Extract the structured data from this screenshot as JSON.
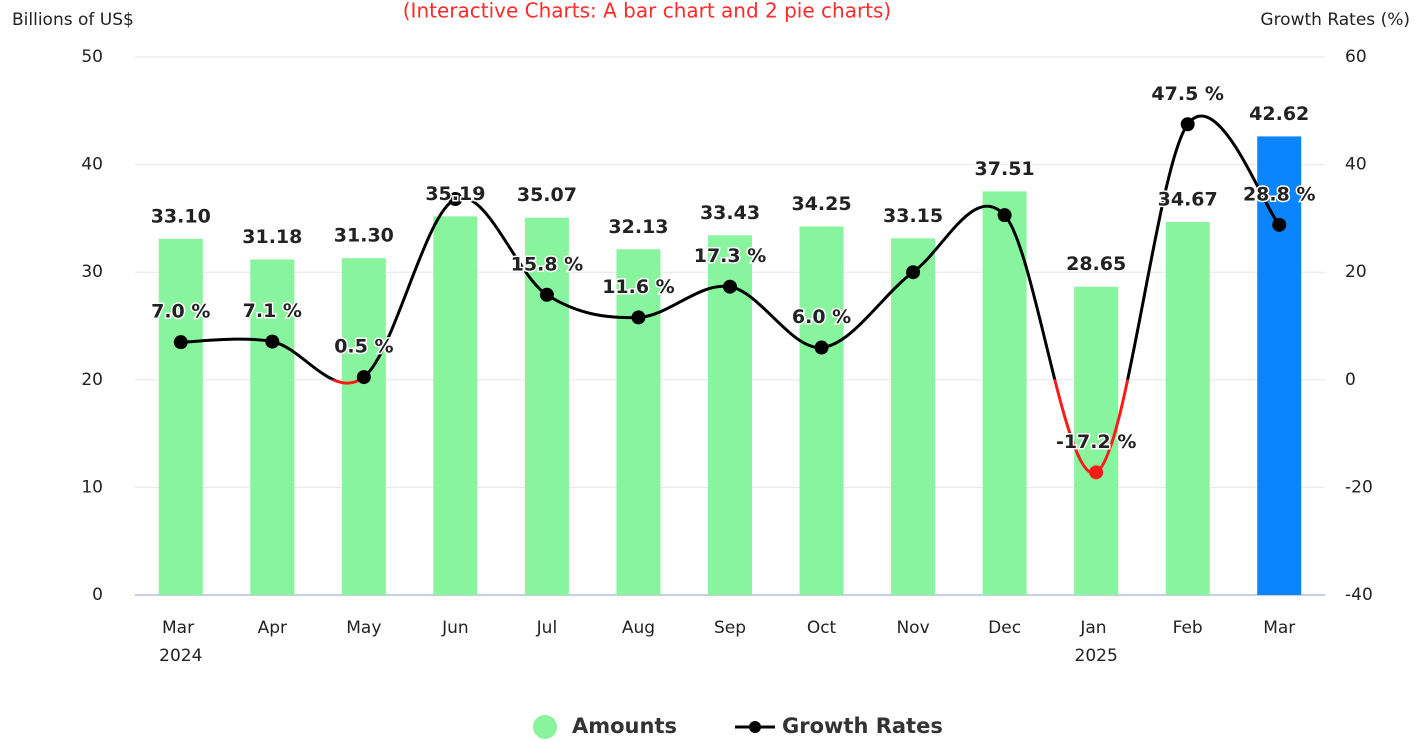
{
  "chart_data": {
    "type": "bar-line",
    "title": "(Interactive Charts: A bar chart and 2 pie charts)",
    "y_label": "Billions of US$",
    "y2_label": "Growth Rates (%)",
    "categories": [
      "Mar 2024",
      "Apr",
      "May",
      "Jun",
      "Jul",
      "Aug",
      "Sep",
      "Oct",
      "Nov",
      "Dec",
      "Jan 2025",
      "Feb",
      "Mar"
    ],
    "ylim": [
      0,
      50
    ],
    "yticks": [
      0,
      10,
      20,
      30,
      40,
      50
    ],
    "y2lim": [
      -40,
      60
    ],
    "y2ticks": [
      -40,
      -20,
      0,
      20,
      40,
      60
    ],
    "grid": true,
    "series": [
      {
        "name": "Amounts",
        "type": "bar",
        "color": "#88f59e",
        "colors": [
          "#88f59e",
          "#88f59e",
          "#88f59e",
          "#88f59e",
          "#88f59e",
          "#88f59e",
          "#88f59e",
          "#88f59e",
          "#88f59e",
          "#88f59e",
          "#88f59e",
          "#88f59e",
          "#0a84ff"
        ],
        "values": [
          33.1,
          31.18,
          31.3,
          35.19,
          35.07,
          32.13,
          33.43,
          34.25,
          33.15,
          37.51,
          28.65,
          34.67,
          42.62
        ],
        "value_labels": [
          "33.10",
          "31.18",
          "31.30",
          "35.19",
          "35.07",
          "32.13",
          "33.43",
          "34.25",
          "33.15",
          "37.51",
          "28.65",
          "34.67",
          "42.62"
        ]
      },
      {
        "name": "Growth Rates",
        "type": "line",
        "axis": "y2",
        "color": "#000000",
        "negative_color": "#ff1a1a",
        "values": [
          7.0,
          7.1,
          0.5,
          33.6,
          15.8,
          11.6,
          17.3,
          6.0,
          20.0,
          30.6,
          -17.2,
          47.5,
          28.8
        ],
        "value_labels": [
          "7.0 %",
          "7.1 %",
          "0.5 %",
          null,
          "15.8 %",
          "11.6 %",
          "17.3 %",
          "6.0 %",
          null,
          null,
          "-17.2 %",
          "47.5 %",
          "28.8 %"
        ]
      }
    ]
  }
}
